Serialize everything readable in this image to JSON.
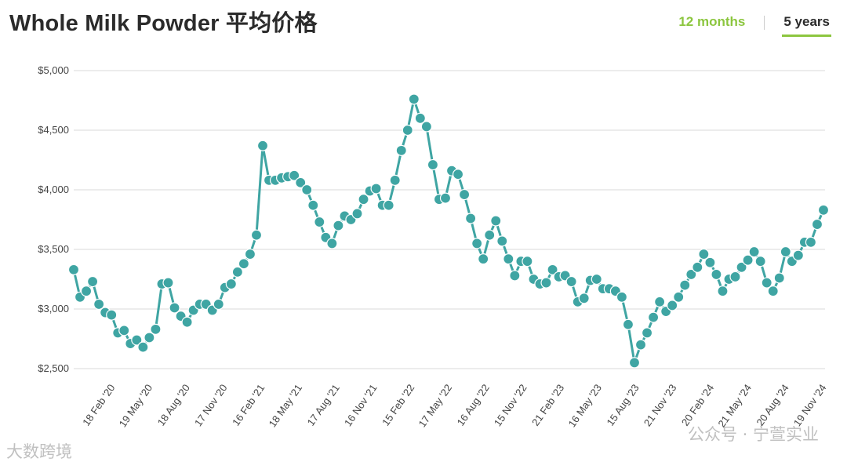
{
  "page": {
    "title": "Whole Milk Powder 平均价格",
    "tabs": [
      {
        "label": "12 months"
      },
      {
        "label": "5 years"
      }
    ],
    "watermark_left": "大数跨境",
    "watermark_right": "公众号 · 宁萱实业"
  },
  "colors": {
    "line": "#3fa5a3",
    "grid": "#d9d9d9",
    "tab_active": "#8cc63f"
  },
  "chart_data": {
    "type": "line",
    "title": "Whole Milk Powder 平均价格",
    "xlabel": "",
    "ylabel": "",
    "ylim": [
      2500,
      5000
    ],
    "y_ticks": [
      "$2,500",
      "$3,000",
      "$3,500",
      "$4,000",
      "$4,500",
      "$5,000"
    ],
    "x_tick_labels": [
      "18 Feb '20",
      "19 May '20",
      "18 Aug '20",
      "17 Nov '20",
      "16 Feb '21",
      "18 May '21",
      "17 Aug '21",
      "16 Nov '21",
      "15 Feb '22",
      "17 May '22",
      "16 Aug '22",
      "15 Nov '22",
      "21 Feb '23",
      "16 May '23",
      "15 Aug '23",
      "21 Nov '23",
      "20 Feb '24",
      "21 May '24",
      "20 Aug '24",
      "19 Nov '24"
    ],
    "grid": true,
    "series": [
      {
        "values": [
          3330,
          3100,
          3150,
          3230,
          3040,
          2970,
          2950,
          2800,
          2820,
          2710,
          2740,
          2680,
          2760,
          2830,
          3210,
          3220,
          3010,
          2940,
          2890,
          2990,
          3040,
          3040,
          2990,
          3040,
          3180,
          3210,
          3310,
          3380,
          3460,
          3620,
          4370,
          4080,
          4080,
          4100,
          4110,
          4120,
          4060,
          4000,
          3870,
          3730,
          3600,
          3550,
          3700,
          3780,
          3750,
          3800,
          3920,
          3990,
          4010,
          3870,
          3870,
          4080,
          4330,
          4500,
          4760,
          4600,
          4530,
          4210,
          3920,
          3930,
          4160,
          4130,
          3960,
          3760,
          3550,
          3420,
          3620,
          3740,
          3570,
          3420,
          3280,
          3400,
          3400,
          3250,
          3210,
          3220,
          3330,
          3270,
          3280,
          3230,
          3060,
          3090,
          3240,
          3250,
          3170,
          3170,
          3150,
          3100,
          2870,
          2550,
          2700,
          2800,
          2930,
          3060,
          2980,
          3030,
          3100,
          3200,
          3290,
          3350,
          3460,
          3390,
          3290,
          3150,
          3250,
          3270,
          3350,
          3410,
          3480,
          3400,
          3220,
          3150,
          3260,
          3480,
          3400,
          3450,
          3560,
          3560,
          3710,
          3830
        ]
      }
    ]
  }
}
